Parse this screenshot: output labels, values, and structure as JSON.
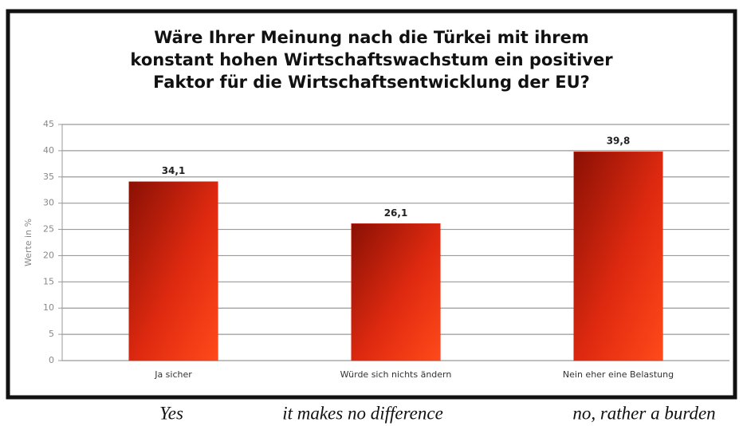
{
  "chart_data": {
    "type": "bar",
    "title": [
      "Wäre Ihrer Meinung nach die Türkei mit ihrem",
      "konstant hohen Wirtschaftswachstum ein positiver",
      "Faktor für die Wirtschaftsentwicklung der EU?"
    ],
    "y_label": "Werte in %",
    "categories": [
      "Ja sicher",
      "Würde sich nichts ändern",
      "Nein eher eine Belastung"
    ],
    "values": [
      34.1,
      26.1,
      39.8
    ],
    "value_labels": [
      "34,1",
      "26,1",
      "39,8"
    ],
    "color": "#e02a10",
    "ylim": [
      0,
      45
    ],
    "yticks": [
      0,
      5,
      10,
      15,
      20,
      25,
      30,
      35,
      40,
      45
    ],
    "grid": true,
    "category_translations": [
      "Yes",
      "it makes no difference",
      "no, rather a burden"
    ]
  }
}
